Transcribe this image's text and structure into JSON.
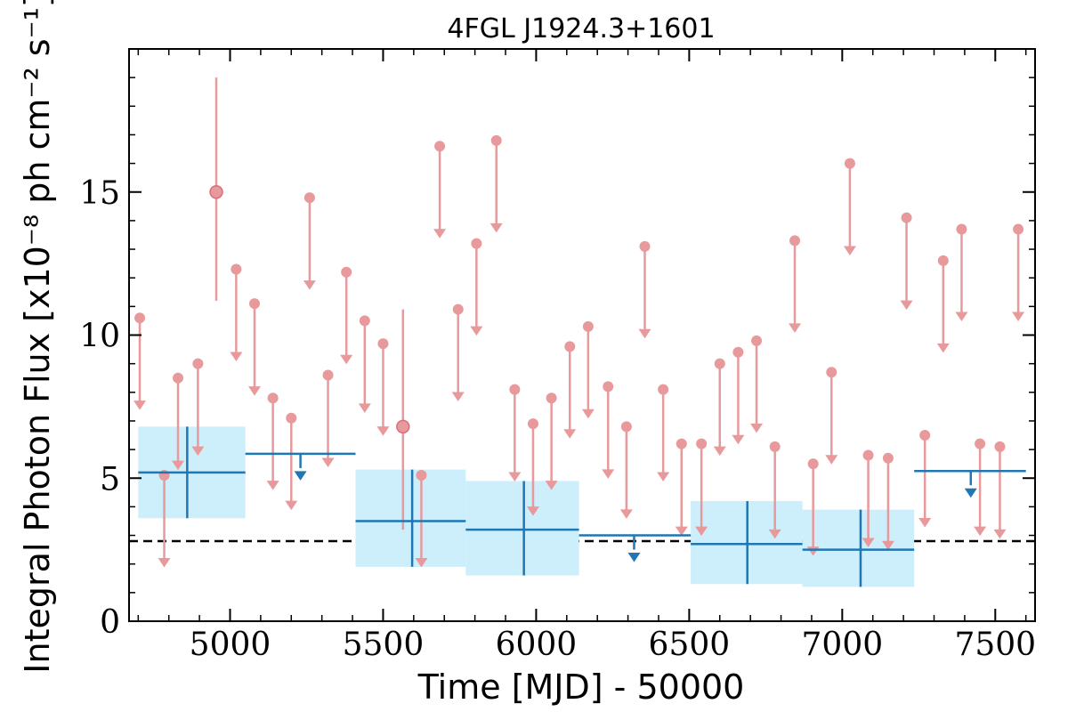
{
  "chart_data": {
    "type": "scatter",
    "title": "4FGL J1924.3+1601",
    "xlabel": "Time [MJD] - 50000",
    "ylabel": "Integral Photon Flux [x10⁻⁸ ph cm⁻² s⁻¹]",
    "xlim": [
      4670,
      7630
    ],
    "ylim": [
      0,
      20
    ],
    "xticks": [
      5000,
      5500,
      6000,
      6500,
      7000,
      7500
    ],
    "yticks": [
      0,
      5,
      10,
      15
    ],
    "grid": false,
    "reference_level": 2.8,
    "colors": {
      "short_bins": "#e8999b",
      "long_bins": "#1f77b4",
      "long_bins_fill": "#cdeefb",
      "reference_line": "#000000"
    },
    "short_bin_detections": [
      {
        "x": 4955,
        "y": 15.0,
        "y_low": 11.2,
        "y_high": 19.0
      },
      {
        "x": 5565,
        "y": 6.8,
        "y_low": 3.2,
        "y_high": 10.9
      }
    ],
    "short_bin_upper_limits": [
      {
        "x": 4705,
        "y": 10.6
      },
      {
        "x": 4785,
        "y": 5.1
      },
      {
        "x": 4830,
        "y": 8.5
      },
      {
        "x": 4895,
        "y": 9.0
      },
      {
        "x": 5020,
        "y": 12.3
      },
      {
        "x": 5080,
        "y": 11.1
      },
      {
        "x": 5140,
        "y": 7.8
      },
      {
        "x": 5200,
        "y": 7.1
      },
      {
        "x": 5260,
        "y": 14.8
      },
      {
        "x": 5320,
        "y": 8.6
      },
      {
        "x": 5380,
        "y": 12.2
      },
      {
        "x": 5440,
        "y": 10.5
      },
      {
        "x": 5500,
        "y": 9.7
      },
      {
        "x": 5625,
        "y": 5.1
      },
      {
        "x": 5685,
        "y": 16.6
      },
      {
        "x": 5745,
        "y": 10.9
      },
      {
        "x": 5805,
        "y": 13.2
      },
      {
        "x": 5870,
        "y": 16.8
      },
      {
        "x": 5930,
        "y": 8.1
      },
      {
        "x": 5990,
        "y": 6.9
      },
      {
        "x": 6050,
        "y": 7.8
      },
      {
        "x": 6110,
        "y": 9.6
      },
      {
        "x": 6170,
        "y": 10.3
      },
      {
        "x": 6235,
        "y": 8.2
      },
      {
        "x": 6295,
        "y": 6.8
      },
      {
        "x": 6355,
        "y": 13.1
      },
      {
        "x": 6415,
        "y": 8.1
      },
      {
        "x": 6475,
        "y": 6.2
      },
      {
        "x": 6540,
        "y": 6.2
      },
      {
        "x": 6600,
        "y": 9.0
      },
      {
        "x": 6660,
        "y": 9.4
      },
      {
        "x": 6720,
        "y": 9.8
      },
      {
        "x": 6780,
        "y": 6.1
      },
      {
        "x": 6845,
        "y": 13.3
      },
      {
        "x": 6905,
        "y": 5.5
      },
      {
        "x": 6965,
        "y": 8.7
      },
      {
        "x": 7025,
        "y": 16.0
      },
      {
        "x": 7085,
        "y": 5.8
      },
      {
        "x": 7150,
        "y": 5.7
      },
      {
        "x": 7210,
        "y": 14.1
      },
      {
        "x": 7270,
        "y": 6.5
      },
      {
        "x": 7330,
        "y": 12.6
      },
      {
        "x": 7390,
        "y": 13.7
      },
      {
        "x": 7450,
        "y": 6.2
      },
      {
        "x": 7515,
        "y": 6.1
      },
      {
        "x": 7575,
        "y": 13.7
      }
    ],
    "long_bin_detections": [
      {
        "x_start": 4700,
        "x_end": 5050,
        "x": 4860,
        "y": 5.2,
        "y_low": 3.6,
        "y_high": 6.8
      },
      {
        "x_start": 5410,
        "x_end": 5770,
        "x": 5595,
        "y": 3.5,
        "y_low": 1.9,
        "y_high": 5.3
      },
      {
        "x_start": 5770,
        "x_end": 6140,
        "x": 5960,
        "y": 3.2,
        "y_low": 1.6,
        "y_high": 4.9
      },
      {
        "x_start": 6505,
        "x_end": 6870,
        "x": 6690,
        "y": 2.7,
        "y_low": 1.3,
        "y_high": 4.2
      },
      {
        "x_start": 6870,
        "x_end": 7235,
        "x": 7060,
        "y": 2.5,
        "y_low": 1.2,
        "y_high": 3.9
      }
    ],
    "long_bin_upper_limits": [
      {
        "x_start": 5050,
        "x_end": 5410,
        "x": 5230,
        "y": 5.85
      },
      {
        "x_start": 6140,
        "x_end": 6505,
        "x": 6320,
        "y": 3.0
      },
      {
        "x_start": 7235,
        "x_end": 7600,
        "x": 7420,
        "y": 5.25
      }
    ]
  }
}
